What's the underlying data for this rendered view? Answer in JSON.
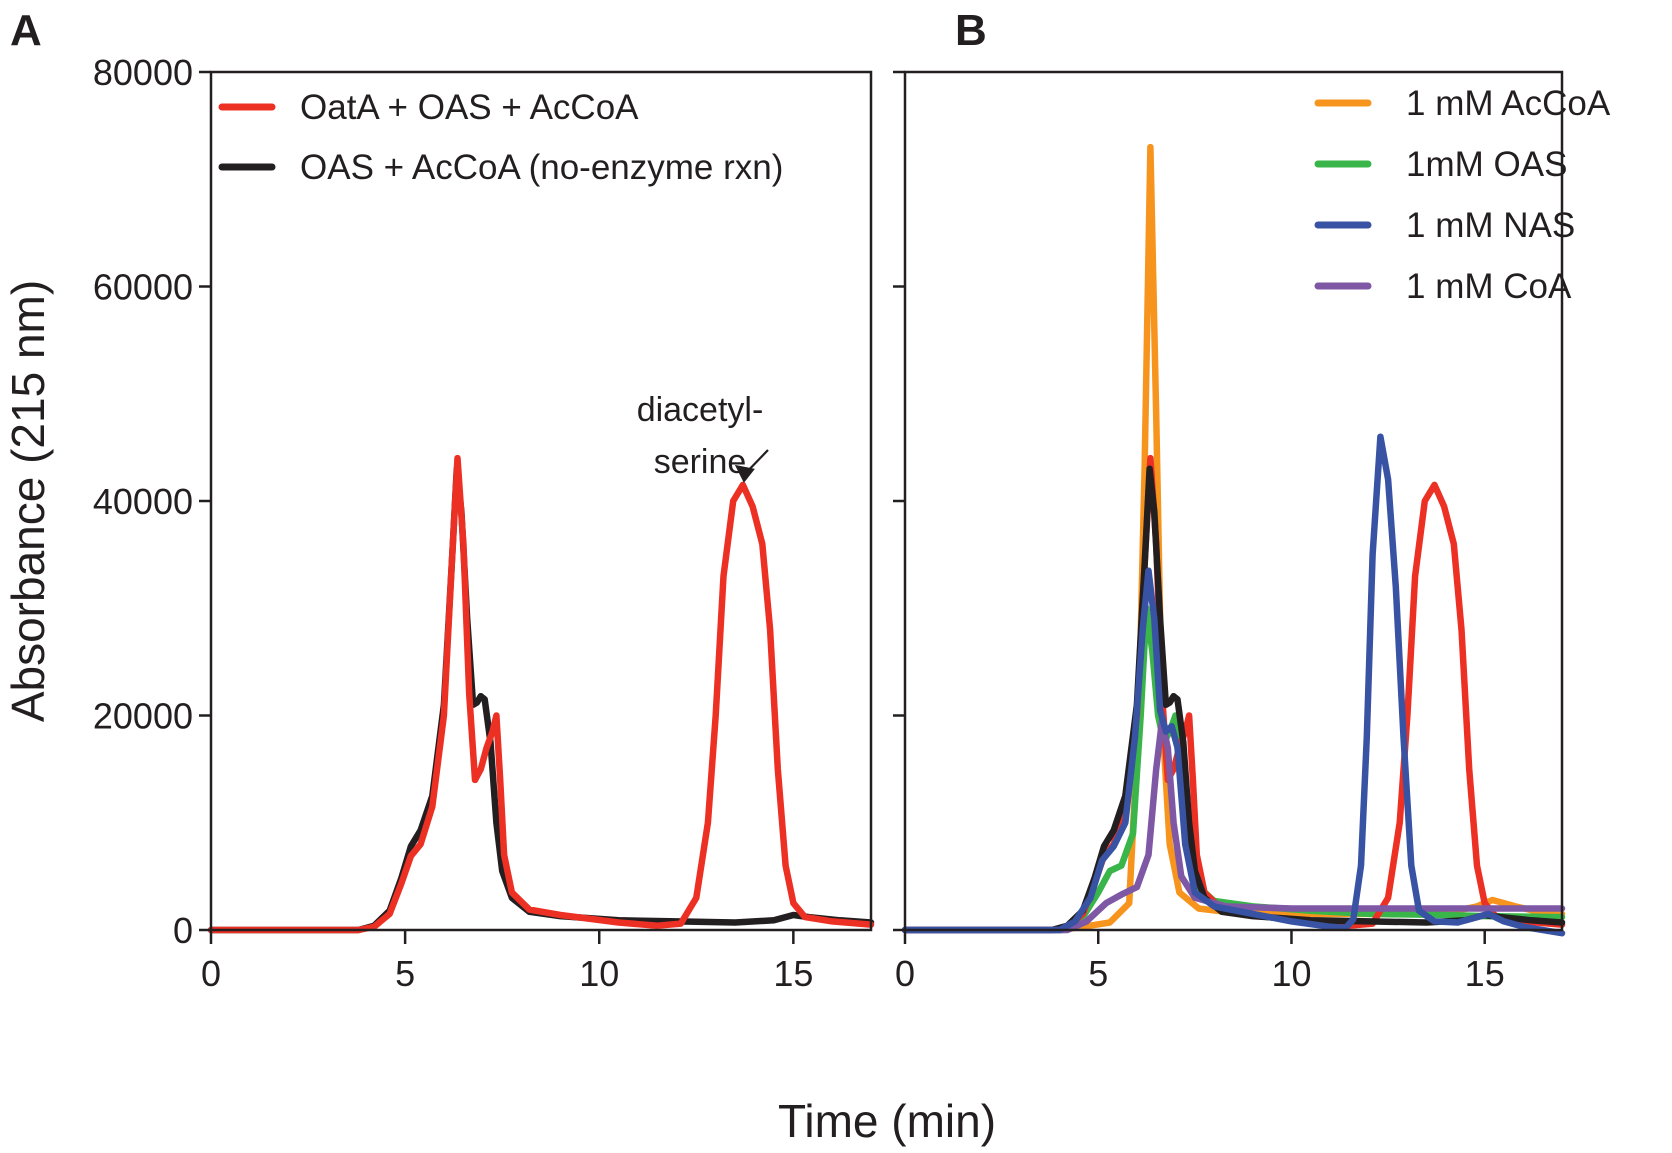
{
  "chart_data": [
    {
      "type": "line",
      "panel": "A",
      "xlabel": "",
      "ylabel": "Absorbance (215 nm)",
      "xlim": [
        0,
        17
      ],
      "ylim": [
        0,
        80000
      ],
      "xticks": [
        0,
        5,
        10,
        15
      ],
      "yticks": [
        0,
        20000,
        40000,
        60000,
        80000
      ],
      "legend_position": "top-left",
      "annotation": {
        "lines": [
          "diacetyl-",
          "serine"
        ],
        "points_to": [
          13.7,
          41500
        ]
      },
      "series": [
        {
          "name": "OAS + AcCoA (no-enzyme rxn)",
          "color": "#231f20",
          "points": [
            [
              0,
              0
            ],
            [
              3.8,
              0
            ],
            [
              4.2,
              400
            ],
            [
              4.6,
              1800
            ],
            [
              4.9,
              4800
            ],
            [
              5.15,
              7800
            ],
            [
              5.4,
              9300
            ],
            [
              5.7,
              12500
            ],
            [
              6.0,
              21000
            ],
            [
              6.2,
              34000
            ],
            [
              6.33,
              43000
            ],
            [
              6.45,
              39000
            ],
            [
              6.6,
              29000
            ],
            [
              6.75,
              21000
            ],
            [
              6.85,
              21200
            ],
            [
              6.95,
              21800
            ],
            [
              7.05,
              21500
            ],
            [
              7.2,
              17500
            ],
            [
              7.35,
              10000
            ],
            [
              7.5,
              5500
            ],
            [
              7.75,
              3000
            ],
            [
              8.2,
              1700
            ],
            [
              9.0,
              1300
            ],
            [
              10.5,
              900
            ],
            [
              12,
              800
            ],
            [
              13.5,
              700
            ],
            [
              14.5,
              900
            ],
            [
              15.0,
              1400
            ],
            [
              15.4,
              1200
            ],
            [
              16.2,
              900
            ],
            [
              17,
              700
            ]
          ]
        },
        {
          "name": "OatA + OAS + AcCoA",
          "color": "#ed3024",
          "points": [
            [
              0,
              0
            ],
            [
              3.8,
              0
            ],
            [
              4.2,
              300
            ],
            [
              4.6,
              1500
            ],
            [
              4.9,
              4300
            ],
            [
              5.15,
              6900
            ],
            [
              5.4,
              8000
            ],
            [
              5.7,
              11500
            ],
            [
              6.0,
              20000
            ],
            [
              6.2,
              34000
            ],
            [
              6.35,
              44000
            ],
            [
              6.5,
              36000
            ],
            [
              6.65,
              22000
            ],
            [
              6.8,
              14000
            ],
            [
              6.95,
              15000
            ],
            [
              7.1,
              17000
            ],
            [
              7.25,
              18500
            ],
            [
              7.35,
              20000
            ],
            [
              7.45,
              14000
            ],
            [
              7.55,
              7000
            ],
            [
              7.75,
              3500
            ],
            [
              8.2,
              1900
            ],
            [
              9.0,
              1400
            ],
            [
              10.5,
              700
            ],
            [
              11.5,
              400
            ],
            [
              12.1,
              600
            ],
            [
              12.5,
              3000
            ],
            [
              12.8,
              10000
            ],
            [
              13.0,
              20000
            ],
            [
              13.2,
              33000
            ],
            [
              13.45,
              40000
            ],
            [
              13.7,
              41500
            ],
            [
              13.95,
              39500
            ],
            [
              14.2,
              36000
            ],
            [
              14.4,
              28000
            ],
            [
              14.6,
              15000
            ],
            [
              14.8,
              6000
            ],
            [
              15.0,
              2500
            ],
            [
              15.3,
              1200
            ],
            [
              16,
              800
            ],
            [
              17,
              500
            ]
          ]
        }
      ]
    },
    {
      "type": "line",
      "panel": "B",
      "xlabel": "",
      "ylabel": "",
      "xlim": [
        0,
        17
      ],
      "ylim": [
        0,
        80000
      ],
      "xticks": [
        0,
        5,
        10,
        15
      ],
      "yticks": [
        0,
        20000,
        40000,
        60000,
        80000
      ],
      "legend_position": "top-right",
      "series": [
        {
          "name": "1 mM AcCoA",
          "color": "#f7941d",
          "points": [
            [
              0,
              0
            ],
            [
              4,
              0
            ],
            [
              4.6,
              300
            ],
            [
              5.3,
              700
            ],
            [
              5.8,
              2500
            ],
            [
              6.05,
              20000
            ],
            [
              6.2,
              43000
            ],
            [
              6.35,
              73000
            ],
            [
              6.5,
              48000
            ],
            [
              6.65,
              20000
            ],
            [
              6.85,
              8000
            ],
            [
              7.1,
              3500
            ],
            [
              7.6,
              2000
            ],
            [
              8.5,
              1600
            ],
            [
              10,
              1500
            ],
            [
              12,
              1500
            ],
            [
              13,
              1500
            ],
            [
              14,
              1600
            ],
            [
              14.8,
              2200
            ],
            [
              15.2,
              2800
            ],
            [
              15.8,
              2200
            ],
            [
              16.5,
              1600
            ],
            [
              17,
              1500
            ]
          ]
        },
        {
          "name": "1mM OAS",
          "color": "#39b54a",
          "points": [
            [
              0,
              0
            ],
            [
              4.1,
              0
            ],
            [
              4.6,
              1200
            ],
            [
              5.0,
              3500
            ],
            [
              5.3,
              5500
            ],
            [
              5.6,
              6000
            ],
            [
              5.9,
              9000
            ],
            [
              6.1,
              20000
            ],
            [
              6.25,
              30000
            ],
            [
              6.4,
              26000
            ],
            [
              6.55,
              20000
            ],
            [
              6.7,
              17500
            ],
            [
              6.85,
              18500
            ],
            [
              7.0,
              20000
            ],
            [
              7.15,
              17000
            ],
            [
              7.35,
              8000
            ],
            [
              7.6,
              4000
            ],
            [
              8,
              2700
            ],
            [
              9,
              2200
            ],
            [
              10.5,
              1800
            ],
            [
              12,
              1500
            ],
            [
              14,
              1400
            ],
            [
              15,
              1300
            ],
            [
              17,
              1200
            ]
          ]
        },
        {
          "name": "OatA + OAS + AcCoA",
          "color": "#ed3024",
          "points": [
            [
              0,
              0
            ],
            [
              3.8,
              0
            ],
            [
              4.2,
              300
            ],
            [
              4.6,
              1500
            ],
            [
              4.9,
              4300
            ],
            [
              5.15,
              6900
            ],
            [
              5.4,
              8000
            ],
            [
              5.7,
              11500
            ],
            [
              6.0,
              20000
            ],
            [
              6.2,
              34000
            ],
            [
              6.35,
              44000
            ],
            [
              6.5,
              36000
            ],
            [
              6.65,
              22000
            ],
            [
              6.8,
              14000
            ],
            [
              6.95,
              15000
            ],
            [
              7.1,
              17000
            ],
            [
              7.25,
              18500
            ],
            [
              7.35,
              20000
            ],
            [
              7.45,
              14000
            ],
            [
              7.55,
              7000
            ],
            [
              7.75,
              3500
            ],
            [
              8.2,
              1900
            ],
            [
              9.0,
              1400
            ],
            [
              10.5,
              700
            ],
            [
              11.5,
              400
            ],
            [
              12.1,
              600
            ],
            [
              12.5,
              3000
            ],
            [
              12.8,
              10000
            ],
            [
              13.0,
              20000
            ],
            [
              13.2,
              33000
            ],
            [
              13.45,
              40000
            ],
            [
              13.7,
              41500
            ],
            [
              13.95,
              39500
            ],
            [
              14.2,
              36000
            ],
            [
              14.4,
              28000
            ],
            [
              14.6,
              15000
            ],
            [
              14.8,
              6000
            ],
            [
              15.0,
              2500
            ],
            [
              15.3,
              1200
            ],
            [
              16,
              800
            ],
            [
              17,
              500
            ]
          ]
        },
        {
          "name": "OAS + AcCoA (no-enzyme rxn)",
          "color": "#231f20",
          "points": [
            [
              0,
              0
            ],
            [
              3.8,
              0
            ],
            [
              4.2,
              400
            ],
            [
              4.6,
              1800
            ],
            [
              4.9,
              4800
            ],
            [
              5.15,
              7800
            ],
            [
              5.4,
              9300
            ],
            [
              5.7,
              12500
            ],
            [
              6.0,
              21000
            ],
            [
              6.2,
              34000
            ],
            [
              6.33,
              43000
            ],
            [
              6.45,
              39000
            ],
            [
              6.6,
              29000
            ],
            [
              6.75,
              21000
            ],
            [
              6.85,
              21200
            ],
            [
              6.95,
              21800
            ],
            [
              7.05,
              21500
            ],
            [
              7.2,
              17500
            ],
            [
              7.35,
              10000
            ],
            [
              7.5,
              5500
            ],
            [
              7.75,
              3000
            ],
            [
              8.2,
              1700
            ],
            [
              9.0,
              1300
            ],
            [
              10.5,
              900
            ],
            [
              12,
              800
            ],
            [
              13.5,
              700
            ],
            [
              14.5,
              900
            ],
            [
              15.0,
              1400
            ],
            [
              15.4,
              1200
            ],
            [
              16.2,
              900
            ],
            [
              17,
              700
            ]
          ]
        },
        {
          "name": "1 mM CoA",
          "color": "#7e57a5",
          "points": [
            [
              0,
              0
            ],
            [
              4.2,
              0
            ],
            [
              4.7,
              800
            ],
            [
              5.2,
              2500
            ],
            [
              5.6,
              3300
            ],
            [
              6.0,
              4000
            ],
            [
              6.3,
              7000
            ],
            [
              6.5,
              15000
            ],
            [
              6.65,
              19500
            ],
            [
              6.8,
              17000
            ],
            [
              6.95,
              10000
            ],
            [
              7.15,
              5000
            ],
            [
              7.5,
              3000
            ],
            [
              8.3,
              2200
            ],
            [
              10,
              2000
            ],
            [
              12,
              2000
            ],
            [
              14,
              2000
            ],
            [
              15,
              2000
            ],
            [
              17,
              2000
            ]
          ]
        },
        {
          "name": "1 mM NAS",
          "color": "#3953a4",
          "points": [
            [
              0,
              0
            ],
            [
              4.0,
              0
            ],
            [
              4.4,
              800
            ],
            [
              4.8,
              3000
            ],
            [
              5.1,
              6500
            ],
            [
              5.4,
              7800
            ],
            [
              5.7,
              10000
            ],
            [
              5.95,
              18000
            ],
            [
              6.15,
              28000
            ],
            [
              6.3,
              33500
            ],
            [
              6.45,
              29000
            ],
            [
              6.6,
              20500
            ],
            [
              6.75,
              18500
            ],
            [
              6.9,
              19000
            ],
            [
              7.05,
              17000
            ],
            [
              7.25,
              8000
            ],
            [
              7.5,
              3500
            ],
            [
              8,
              2200
            ],
            [
              9,
              1500
            ],
            [
              10,
              800
            ],
            [
              11,
              300
            ],
            [
              11.4,
              200
            ],
            [
              11.6,
              1000
            ],
            [
              11.8,
              6000
            ],
            [
              11.95,
              18000
            ],
            [
              12.1,
              35000
            ],
            [
              12.3,
              46000
            ],
            [
              12.5,
              42000
            ],
            [
              12.7,
              32000
            ],
            [
              12.9,
              18000
            ],
            [
              13.1,
              6000
            ],
            [
              13.3,
              1800
            ],
            [
              13.7,
              800
            ],
            [
              14.3,
              700
            ],
            [
              14.8,
              1200
            ],
            [
              15.1,
              1500
            ],
            [
              15.5,
              800
            ],
            [
              16,
              300
            ],
            [
              17,
              -300
            ]
          ]
        }
      ]
    }
  ],
  "panels": {
    "A": {
      "letter": "A"
    },
    "B": {
      "letter": "B"
    }
  },
  "shared_x_label": "Time (min)",
  "legend_A": [
    "OatA + OAS + AcCoA",
    "OAS + AcCoA (no-enzyme rxn)"
  ],
  "legend_A_colors": [
    "#ed3024",
    "#231f20"
  ],
  "legend_B": [
    "1 mM AcCoA",
    "1mM OAS",
    "1 mM NAS",
    "1 mM CoA"
  ],
  "legend_B_colors": [
    "#f7941d",
    "#39b54a",
    "#3953a4",
    "#7e57a5"
  ]
}
